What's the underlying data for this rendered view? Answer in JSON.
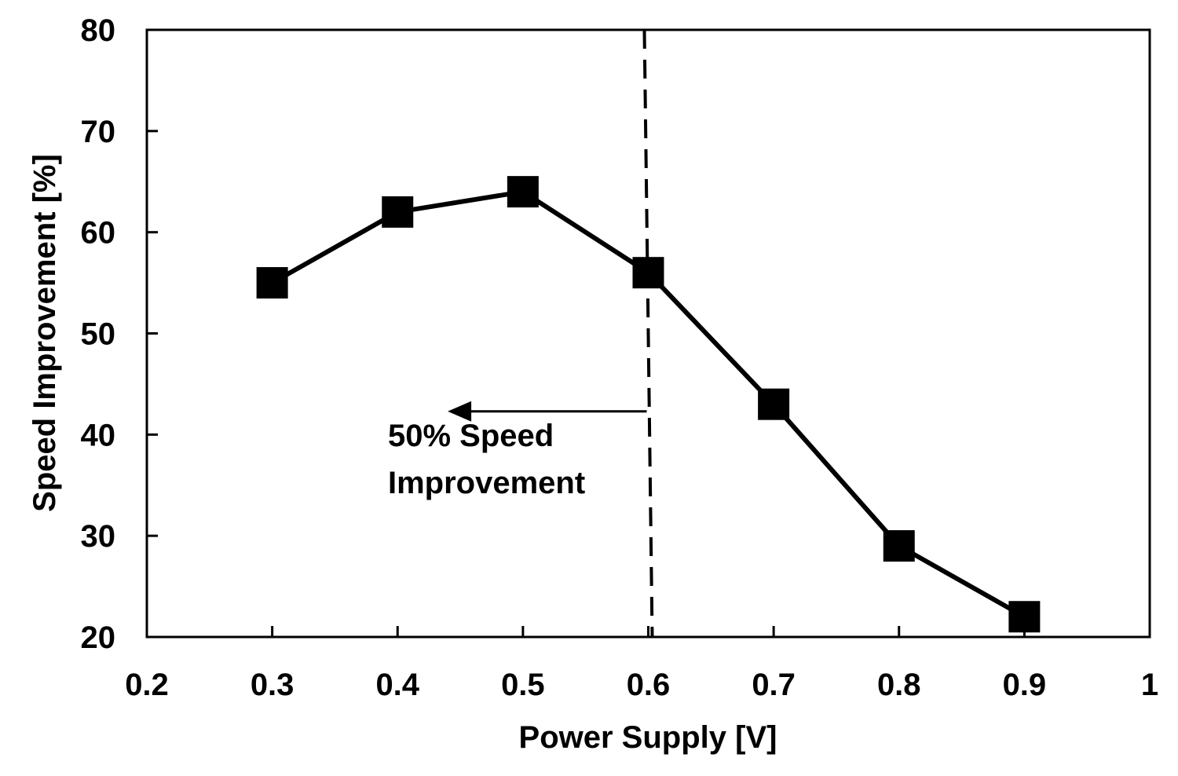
{
  "chart_data": {
    "type": "line",
    "title": "",
    "xlabel": "Power Supply [V]",
    "ylabel": "Speed Improvement [%]",
    "xlim": [
      0.2,
      1.0
    ],
    "ylim": [
      20,
      80
    ],
    "xticks": [
      0.2,
      0.3,
      0.4,
      0.5,
      0.6,
      0.7,
      0.8,
      0.9,
      1.0
    ],
    "xtick_labels": [
      "0.2",
      "0.3",
      "0.4",
      "0.5",
      "0.6",
      "0.7",
      "0.8",
      "0.9",
      "1"
    ],
    "yticks": [
      20,
      30,
      40,
      50,
      60,
      70,
      80
    ],
    "ytick_labels": [
      "20",
      "30",
      "40",
      "50",
      "60",
      "70",
      "80"
    ],
    "grid": false,
    "legend": "none",
    "series": [
      {
        "marker": "square",
        "color": "#000000",
        "x": [
          0.3,
          0.4,
          0.5,
          0.6,
          0.7,
          0.8,
          0.9
        ],
        "y": [
          55,
          62,
          64,
          56,
          43,
          29,
          22
        ]
      }
    ],
    "reference_line": {
      "x": 0.6,
      "style": "dashed",
      "color": "#000000"
    },
    "annotation": {
      "lines": [
        "50% Speed",
        "Improvement"
      ],
      "arrow_from_x": 0.6,
      "arrow_to_x": 0.44,
      "arrow_y": 42.3,
      "direction": "left"
    }
  }
}
